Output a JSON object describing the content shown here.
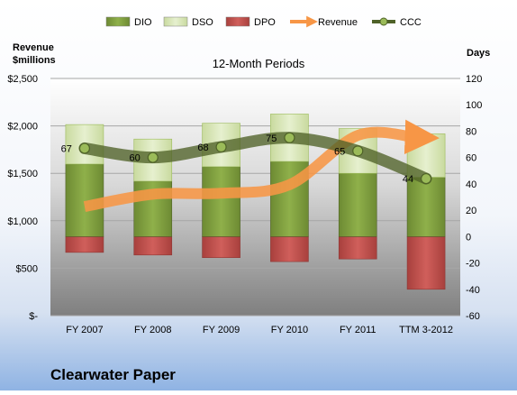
{
  "chart_data": {
    "type": "bar",
    "title": "12-Month Periods",
    "company": "Clearwater Paper",
    "left_axis_title": [
      "Revenue",
      "$millions"
    ],
    "right_axis_title": "Days",
    "categories": [
      "FY 2007",
      "FY 2008",
      "FY 2009",
      "FY 2010",
      "FY 2011",
      "TTM 3-2012"
    ],
    "y_left": {
      "min": 0,
      "max": 2500,
      "ticks": [
        "$-",
        "$500",
        "$1,000",
        "$1,500",
        "$2,000",
        "$2,500"
      ],
      "tick_values": [
        0,
        500,
        1000,
        1500,
        2000,
        2500
      ]
    },
    "y_right": {
      "min": -60,
      "max": 120,
      "ticks": [
        "-60",
        "-40",
        "-20",
        "0",
        "20",
        "40",
        "60",
        "80",
        "100",
        "120"
      ],
      "tick_values": [
        -60,
        -40,
        -20,
        0,
        20,
        40,
        60,
        80,
        100,
        120
      ]
    },
    "series": [
      {
        "name": "DIO",
        "axis": "right",
        "kind": "stacked-bar",
        "color": "#77933c",
        "values": [
          55,
          42,
          53,
          57,
          48,
          45
        ]
      },
      {
        "name": "DSO",
        "axis": "right",
        "kind": "stacked-bar",
        "color": "#d7e4bd",
        "values": [
          30,
          32,
          33,
          36,
          34,
          33
        ]
      },
      {
        "name": "DPO",
        "axis": "right",
        "kind": "stacked-bar",
        "color": "#c0504d",
        "values": [
          -12,
          -14,
          -16,
          -19,
          -17,
          -40
        ]
      },
      {
        "name": "Revenue",
        "axis": "left",
        "kind": "arrow-line",
        "color": "#f79646",
        "values": [
          1150,
          1280,
          1290,
          1380,
          1900,
          1880
        ]
      },
      {
        "name": "CCC",
        "axis": "right",
        "kind": "line",
        "color": "#4f6228",
        "values": [
          67,
          60,
          68,
          75,
          65,
          44
        ]
      }
    ],
    "data_labels": {
      "CCC": [
        "67",
        "60",
        "68",
        "75",
        "65",
        "44"
      ]
    },
    "legend": "top",
    "grid": true
  }
}
